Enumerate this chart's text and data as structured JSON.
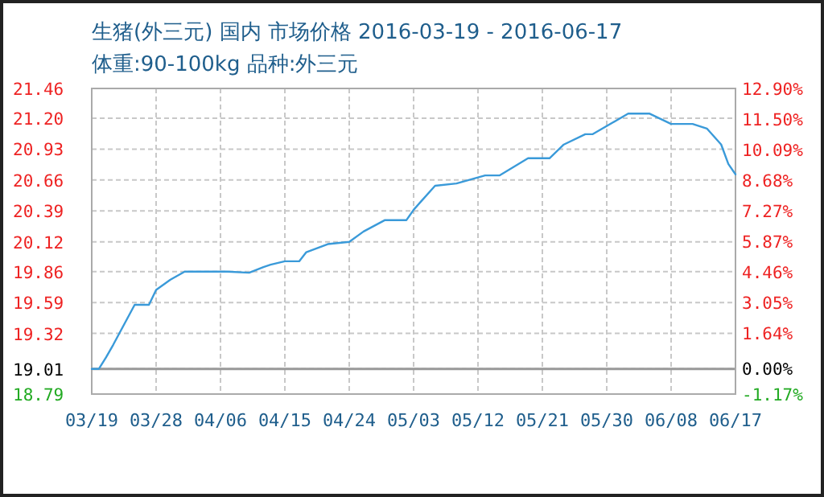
{
  "chart_data": {
    "type": "line",
    "title": "生猪(外三元) 国内 市场价格 2016-03-19 - 2016-06-17",
    "subtitle": "体重:90-100kg 品种:外三元",
    "x": [
      "2016-03-19",
      "2016-03-20",
      "2016-03-21",
      "2016-03-22",
      "2016-03-25",
      "2016-03-27",
      "2016-03-28",
      "2016-03-30",
      "2016-04-01",
      "2016-04-07",
      "2016-04-10",
      "2016-04-12",
      "2016-04-13",
      "2016-04-15",
      "2016-04-17",
      "2016-04-18",
      "2016-04-21",
      "2016-04-24",
      "2016-04-26",
      "2016-04-29",
      "2016-05-02",
      "2016-05-03",
      "2016-05-04",
      "2016-05-06",
      "2016-05-09",
      "2016-05-13",
      "2016-05-15",
      "2016-05-19",
      "2016-05-22",
      "2016-05-24",
      "2016-05-27",
      "2016-05-28",
      "2016-06-02",
      "2016-06-05",
      "2016-06-08",
      "2016-06-11",
      "2016-06-13",
      "2016-06-15",
      "2016-06-16",
      "2016-06-17"
    ],
    "series": [
      {
        "color": "#3a9ad9",
        "values": [
          19.01,
          19.01,
          19.11,
          19.22,
          19.57,
          19.57,
          19.7,
          19.79,
          19.86,
          19.86,
          19.85,
          19.9,
          19.92,
          19.95,
          19.95,
          20.03,
          20.1,
          20.12,
          20.21,
          20.31,
          20.31,
          20.4,
          20.47,
          20.61,
          20.63,
          20.7,
          20.7,
          20.85,
          20.85,
          20.97,
          21.06,
          21.06,
          21.24,
          21.24,
          21.15,
          21.15,
          21.11,
          20.97,
          20.8,
          20.71
        ]
      }
    ],
    "xlim": [
      "2016-03-19",
      "2016-06-17"
    ],
    "xticks": [
      {
        "value": "2016-03-19",
        "label": "03/19"
      },
      {
        "value": "2016-03-28",
        "label": "03/28"
      },
      {
        "value": "2016-04-06",
        "label": "04/06"
      },
      {
        "value": "2016-04-15",
        "label": "04/15"
      },
      {
        "value": "2016-04-24",
        "label": "04/24"
      },
      {
        "value": "2016-05-03",
        "label": "05/03"
      },
      {
        "value": "2016-05-12",
        "label": "05/12"
      },
      {
        "value": "2016-05-21",
        "label": "05/21"
      },
      {
        "value": "2016-05-30",
        "label": "05/30"
      },
      {
        "value": "2016-06-08",
        "label": "06/08"
      },
      {
        "value": "2016-06-17",
        "label": "06/17"
      }
    ],
    "ylim": [
      18.79,
      21.46
    ],
    "yticks": [
      18.79,
      19.01,
      19.32,
      19.59,
      19.86,
      20.12,
      20.39,
      20.66,
      20.93,
      {
        "value": 21.2,
        "label": "21.20"
      },
      21.46
    ],
    "y2lim": [
      -1.17,
      12.9
    ],
    "y2ticks": [
      {
        "value": -1.17,
        "label": "-1.17%"
      },
      {
        "value": 0,
        "label": "0.00%"
      },
      {
        "value": 1.64,
        "label": "1.64%"
      },
      {
        "value": 3.05,
        "label": "3.05%"
      },
      {
        "value": 4.46,
        "label": "4.46%"
      },
      {
        "value": 5.87,
        "label": "5.87%"
      },
      {
        "value": 7.27,
        "label": "7.27%"
      },
      {
        "value": 8.68,
        "label": "8.68%"
      },
      {
        "value": 10.09,
        "label": "10.09%"
      },
      {
        "value": 11.5,
        "label": "11.50%"
      },
      {
        "value": 12.9,
        "label": "12.90%"
      }
    ],
    "ref_lines": [
      {
        "axis": "y",
        "value": 19.01,
        "color": "#999999"
      }
    ],
    "grid": true,
    "marker": "none",
    "line_style": "solid"
  }
}
